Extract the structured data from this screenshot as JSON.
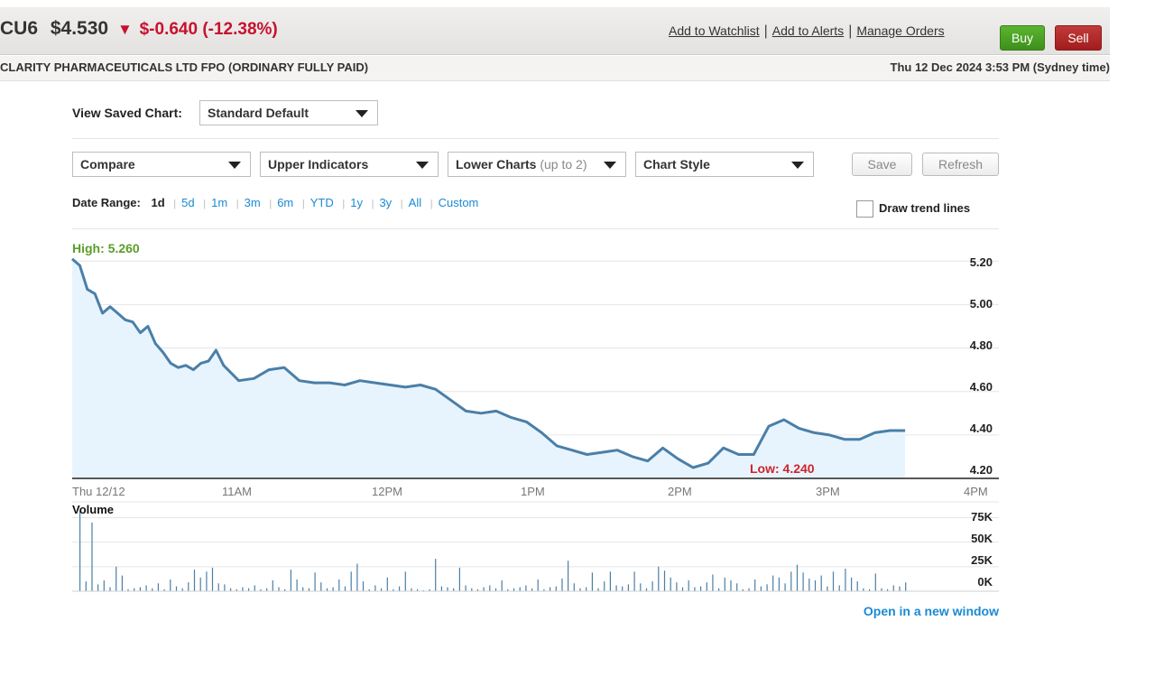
{
  "header": {
    "code": "CU6",
    "price": "$4.530",
    "change": "$-0.640 (-12.38%)",
    "company": "CLARITY PHARMACEUTICALS LTD FPO (ORDINARY FULLY PAID)",
    "timestamp": "Thu 12 Dec 2024 3:53 PM (Sydney time)",
    "links": [
      "Add to Watchlist",
      "Add to Alerts",
      "Manage Orders"
    ],
    "buy_label": "Buy",
    "sell_label": "Sell"
  },
  "toolbar": {
    "saved_label": "View Saved Chart:",
    "saved_value": "Standard Default",
    "compare": "Compare",
    "upper": "Upper Indicators",
    "lower": "Lower Charts",
    "lower_hint": "(up to 2)",
    "style": "Chart Style",
    "save": "Save",
    "refresh": "Refresh"
  },
  "date_range": {
    "label": "Date Range:",
    "current": "1d",
    "options": [
      "5d",
      "1m",
      "3m",
      "6m",
      "YTD",
      "1y",
      "3y",
      "All",
      "Custom"
    ]
  },
  "trend": {
    "label": "Draw trend lines",
    "checked": false
  },
  "open_link": "Open in a new window",
  "colors": {
    "line": "#4a7fa8",
    "fill": "#e8f4fd",
    "up": "#5a9e29",
    "down": "#d1232a",
    "link": "#1a8ad4",
    "volume": "#4a7fa8"
  },
  "chart_data": {
    "type": "line",
    "high_label": "High: 5.260",
    "low_label": "Low: 4.240",
    "ylim": [
      4.2,
      5.28
    ],
    "y_ticks": [
      "5.20",
      "5.00",
      "4.80",
      "4.60",
      "4.40",
      "4.20"
    ],
    "x_ticks": [
      "Thu 12/12",
      "11AM",
      "12PM",
      "1PM",
      "2PM",
      "3PM",
      "4PM"
    ],
    "x_range_hours": [
      10,
      16
    ],
    "grid": true,
    "price_series": {
      "t": [
        10.0,
        10.05,
        10.1,
        10.15,
        10.2,
        10.25,
        10.3,
        10.35,
        10.4,
        10.45,
        10.5,
        10.55,
        10.6,
        10.65,
        10.7,
        10.75,
        10.8,
        10.85,
        10.9,
        10.95,
        11.0,
        11.1,
        11.2,
        11.3,
        11.4,
        11.5,
        11.6,
        11.7,
        11.8,
        11.9,
        12.0,
        12.1,
        12.2,
        12.3,
        12.4,
        12.5,
        12.6,
        12.7,
        12.8,
        12.9,
        13.0,
        13.1,
        13.2,
        13.3,
        13.4,
        13.5,
        13.6,
        13.7,
        13.8,
        13.9,
        14.0,
        14.1,
        14.2,
        14.3,
        14.4,
        14.5,
        14.6,
        14.7,
        14.75,
        14.8,
        14.9,
        15.0,
        15.05,
        15.1,
        15.2,
        15.3,
        15.4,
        15.5
      ],
      "v": [
        5.21,
        5.18,
        5.07,
        5.05,
        4.96,
        4.99,
        4.96,
        4.93,
        4.92,
        4.87,
        4.9,
        4.82,
        4.78,
        4.73,
        4.71,
        4.72,
        4.7,
        4.73,
        4.74,
        4.79,
        4.72,
        4.65,
        4.66,
        4.7,
        4.71,
        4.65,
        4.64,
        4.64,
        4.63,
        4.65,
        4.64,
        4.63,
        4.62,
        4.63,
        4.61,
        4.56,
        4.51,
        4.5,
        4.51,
        4.48,
        4.46,
        4.41,
        4.35,
        4.33,
        4.31,
        4.32,
        4.33,
        4.3,
        4.28,
        4.34,
        4.29,
        4.25,
        4.27,
        4.34,
        4.31,
        4.31,
        4.44,
        4.47,
        4.45,
        4.43,
        4.41,
        4.4,
        4.39,
        4.38,
        4.38,
        4.41,
        4.42,
        4.42
      ]
    },
    "volume": {
      "title": "Volume",
      "y_ticks": [
        "75K",
        "50K",
        "25K",
        "0K"
      ],
      "ylim": [
        0,
        80000
      ],
      "bars": [
        82000,
        10000,
        70000,
        7000,
        11000,
        4000,
        25000,
        16000,
        2000,
        3000,
        4000,
        6000,
        3000,
        8000,
        2000,
        12000,
        5000,
        3000,
        9000,
        22000,
        14000,
        20000,
        24000,
        8000,
        7000,
        3000,
        2000,
        4000,
        3000,
        6000,
        2000,
        3000,
        11000,
        4000,
        2000,
        22000,
        12000,
        4000,
        3000,
        19000,
        9000,
        3000,
        4000,
        12000,
        5000,
        20000,
        28000,
        10000,
        2000,
        6000,
        3000,
        14000,
        2000,
        5000,
        20000,
        3000,
        2000,
        1000,
        2000,
        33000,
        5000,
        4000,
        3000,
        24000,
        6000,
        3000,
        2000,
        4000,
        6000,
        3000,
        11000,
        2000,
        3000,
        4000,
        6000,
        3000,
        12000,
        2000,
        4000,
        5000,
        13000,
        31000,
        8000,
        3000,
        4000,
        19000,
        3000,
        10000,
        20000,
        6000,
        5000,
        7000,
        20000,
        8000,
        3000,
        10000,
        25000,
        21000,
        14000,
        9000,
        4000,
        11000,
        4000,
        5000,
        9000,
        17000,
        3000,
        14000,
        11000,
        8000,
        2000,
        3000,
        12000,
        5000,
        7000,
        16000,
        14000,
        8000,
        20000,
        27000,
        19000,
        13000,
        11000,
        16000,
        5000,
        20000,
        6000,
        23000,
        14000,
        10000,
        3000,
        2000,
        18000,
        3000,
        2000,
        6000,
        5000,
        9000
      ]
    }
  }
}
